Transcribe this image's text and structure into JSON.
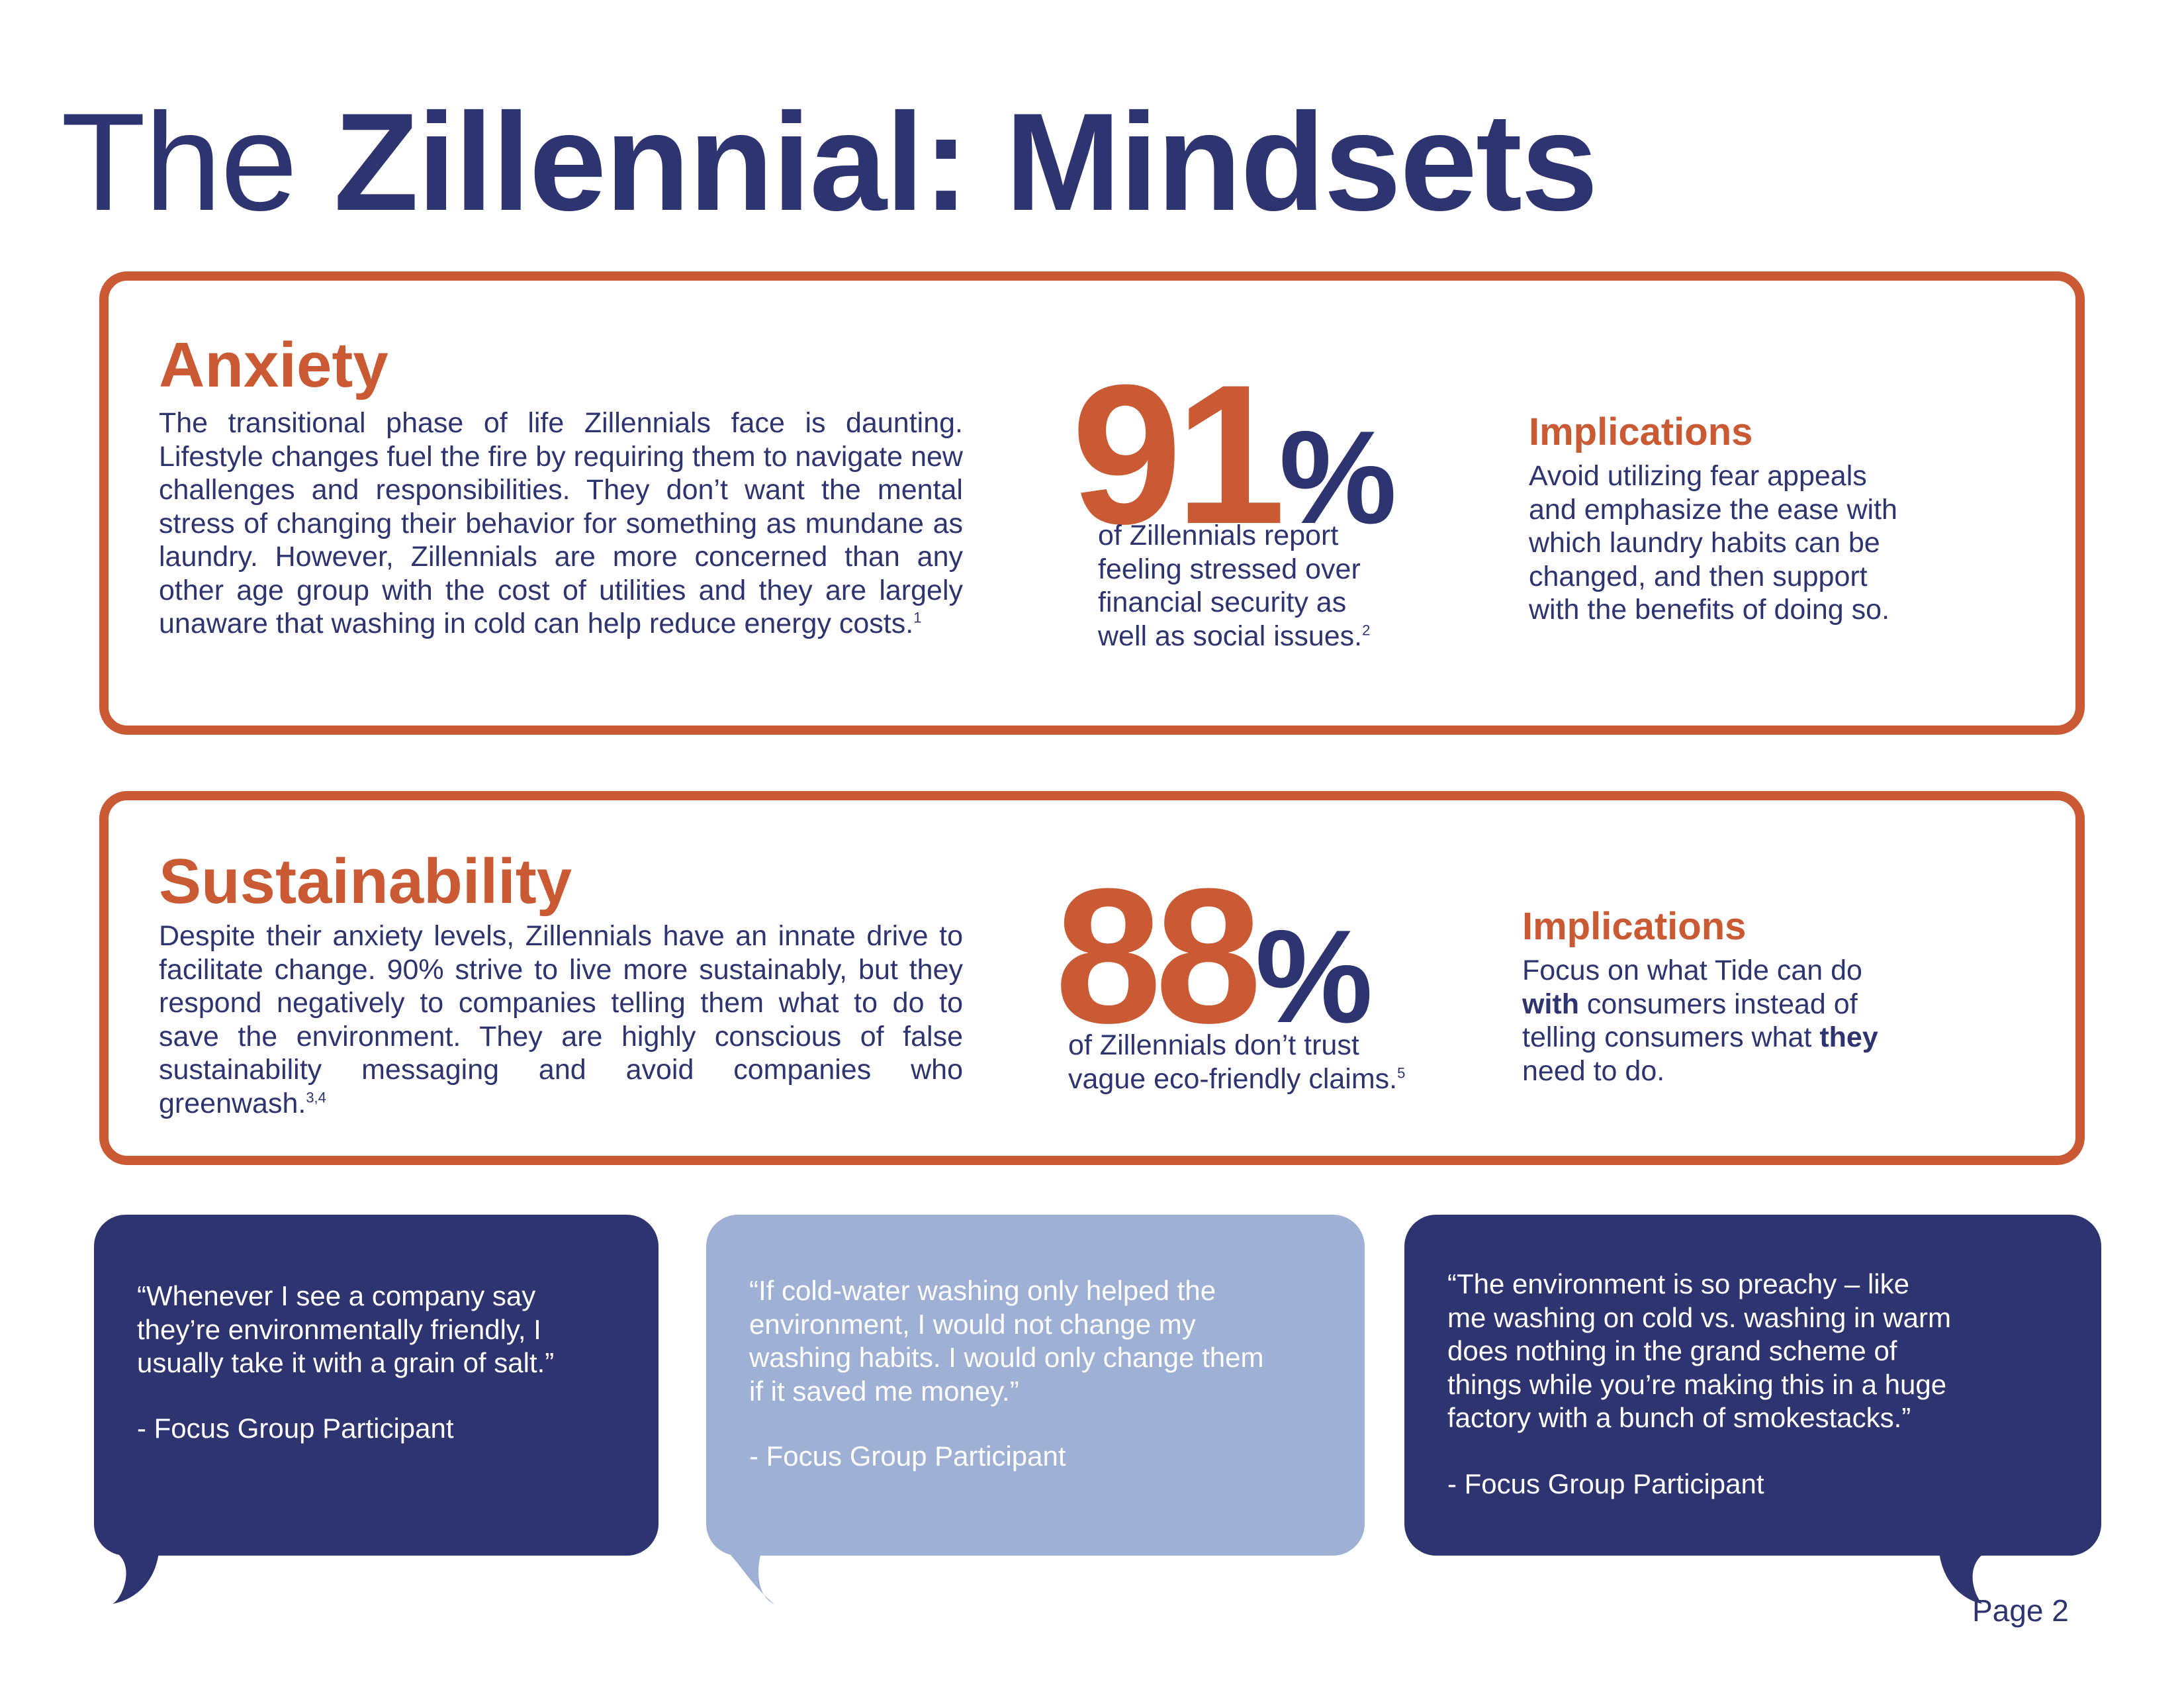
{
  "title": {
    "light": "The",
    "bold": "Zillennial: Mindsets"
  },
  "anxiety": {
    "heading": "Anxiety",
    "body": "The transitional phase of life Zillennials face is daunting. Lifestyle changes fuel the fire by requiring them to navigate new challenges and responsibilities. They don’t want the mental stress of changing their behavior for something as mundane as laundry. However, Zillennials are more concerned than any other age group with the cost of utilities and they are largely unaware that washing in cold can help reduce energy costs.",
    "body_footnote": "1",
    "stat_number": "91",
    "stat_symbol": "%",
    "stat_lines": [
      "of Zillennials report",
      "feeling stressed over",
      "financial security as",
      "well as social issues."
    ],
    "stat_footnote": "2",
    "implications_heading": "Implications",
    "implications_lines": [
      "Avoid utilizing fear appeals",
      "and emphasize the ease with",
      "which laundry habits can be",
      "changed, and then support",
      "with the benefits of doing so."
    ]
  },
  "sustainability": {
    "heading": "Sustainability",
    "body": "Despite their anxiety levels, Zillennials have an innate drive to facilitate change. 90% strive to live more sustainably, but they respond negatively to companies telling them what to do to save the environment. They are highly conscious of false sustainability messaging and avoid companies who greenwash.",
    "body_footnote": "3,4",
    "stat_number": "88",
    "stat_symbol": "%",
    "stat_lines": [
      "of Zillennials don’t trust",
      "vague eco-friendly claims."
    ],
    "stat_footnote": "5",
    "implications_heading": "Implications",
    "impl_line1": "Focus on what Tide can do",
    "impl_line2_bold": "with",
    "impl_line2_rest": " consumers instead of",
    "impl_line3_start": "telling consumers what ",
    "impl_line3_bold": "they",
    "impl_line4": "need to do."
  },
  "quotes": [
    {
      "lines": [
        "“Whenever I see a company say",
        "they’re environmentally friendly, I",
        "usually take it with a grain of salt.”"
      ],
      "attribution": "- Focus Group Participant",
      "color": "#2e3470"
    },
    {
      "lines": [
        "“If cold-water washing only helped the",
        "environment, I would not change my",
        "washing habits. I would only change them",
        "if it saved me money.”"
      ],
      "attribution": "- Focus Group Participant",
      "color": "#9eb0d4"
    },
    {
      "lines": [
        "“The environment is so preachy – like",
        "me washing on cold vs. washing in warm",
        "does nothing in the grand scheme of",
        "things while you’re making this in a huge",
        "factory with a bunch of smokestacks.”"
      ],
      "attribution": "- Focus Group Participant",
      "color": "#2e3470"
    }
  ],
  "page_label": "Page 2",
  "colors": {
    "navy": "#2e3470",
    "orange": "#c95a33",
    "light_blue": "#9eb0d4"
  }
}
